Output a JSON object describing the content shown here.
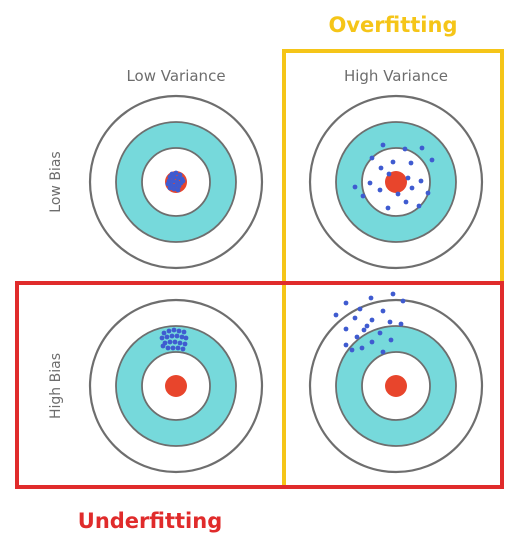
{
  "columns": [
    "Low Variance",
    "High Variance"
  ],
  "rows": [
    "Low Bias",
    "High Bias"
  ],
  "overfitting": {
    "label": "Overfitting",
    "color": "#f5c518"
  },
  "underfitting": {
    "label": "Underfitting",
    "color": "#e02b2b"
  },
  "colors": {
    "ring_stroke": "#6e6e6e",
    "cyan_ring": "#76d9db",
    "bullseye": "#e8452c",
    "dots": "#3f5bd0",
    "white": "#ffffff"
  },
  "targets": [
    "target-low-bias-low-variance",
    "target-low-bias-high-variance",
    "target-high-bias-low-variance",
    "target-high-bias-high-variance"
  ]
}
